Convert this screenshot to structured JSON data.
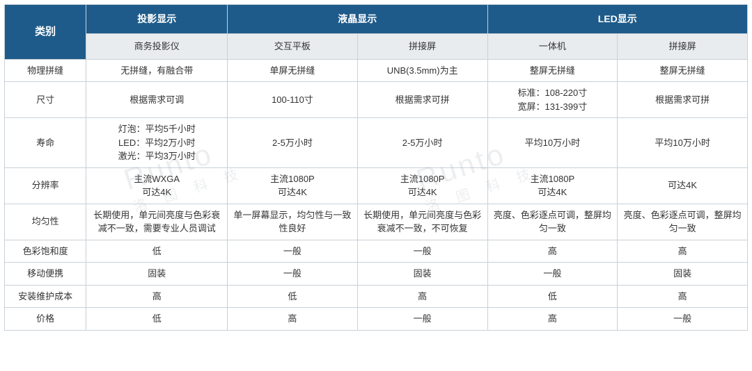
{
  "type": "table",
  "colors": {
    "header_bg": "#1e5b8a",
    "header_text": "#ffffff",
    "subheader_bg": "#e8ecef",
    "border": "#c8d0d8",
    "cell_text": "#333333",
    "watermark": "rgba(150,160,170,0.18)"
  },
  "watermark": {
    "main": "Runto",
    "sub": "洛 图 科 技"
  },
  "header": {
    "category_label": "类别",
    "groups": [
      {
        "label": "投影显示",
        "span": 1
      },
      {
        "label": "液晶显示",
        "span": 2
      },
      {
        "label": "LED显示",
        "span": 2
      }
    ],
    "sub": [
      "商务投影仪",
      "交互平板",
      "拼接屏",
      "一体机",
      "拼接屏"
    ]
  },
  "rows": [
    {
      "label": "物理拼缝",
      "cells": [
        "无拼缝，有融合带",
        "单屏无拼缝",
        "UNB(3.5mm)为主",
        "整屏无拼缝",
        "整屏无拼缝"
      ]
    },
    {
      "label": "尺寸",
      "cells": [
        "根据需求可调",
        "100-110寸",
        "根据需求可拼",
        "标准：108-220寸\n宽屏：131-399寸",
        "根据需求可拼"
      ]
    },
    {
      "label": "寿命",
      "cells": [
        "灯泡：平均5千小时\nLED：平均2万小时\n激光：平均3万小时",
        "2-5万小时",
        "2-5万小时",
        "平均10万小时",
        "平均10万小时"
      ]
    },
    {
      "label": "分辨率",
      "cells": [
        "主流WXGA\n可达4K",
        "主流1080P\n可达4K",
        "主流1080P\n可达4K",
        "主流1080P\n可达4K",
        "可达4K"
      ]
    },
    {
      "label": "均匀性",
      "cells": [
        "长期使用，单元间亮度与色彩衰减不一致，需要专业人员调试",
        "单一屏幕显示，均匀性与一致性良好",
        "长期使用，单元间亮度与色彩衰减不一致，不可恢复",
        "亮度、色彩逐点可调，整屏均匀一致",
        "亮度、色彩逐点可调，整屏均匀一致"
      ]
    },
    {
      "label": "色彩饱和度",
      "cells": [
        "低",
        "一般",
        "一般",
        "高",
        "高"
      ]
    },
    {
      "label": "移动便携",
      "cells": [
        "固装",
        "一般",
        "固装",
        "一般",
        "固装"
      ]
    },
    {
      "label": "安装维护成本",
      "cells": [
        "高",
        "低",
        "高",
        "低",
        "高"
      ]
    },
    {
      "label": "价格",
      "cells": [
        "低",
        "高",
        "一般",
        "高",
        "一般"
      ]
    }
  ]
}
